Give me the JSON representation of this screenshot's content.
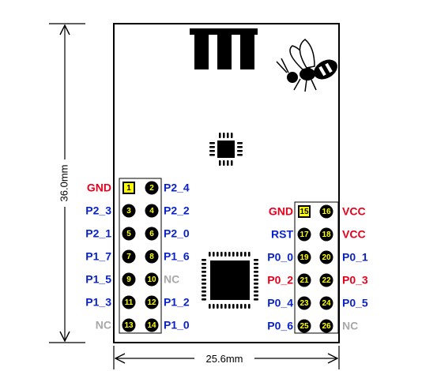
{
  "dimensions": {
    "height_label": "36.0mm",
    "width_label": "25.6mm"
  },
  "colors": {
    "power": "#e8001c",
    "signal": "#0a22cc",
    "nc": "#a8a8a8",
    "pin_marker": "#ffff00",
    "pin1_marker": "#ffff00",
    "outline": "#000000"
  },
  "left_header": {
    "rows": [
      {
        "left": {
          "num": "1",
          "label": "GND",
          "type": "power",
          "square": true
        },
        "right": {
          "num": "2",
          "label": "P2_4",
          "type": "signal"
        }
      },
      {
        "left": {
          "num": "3",
          "label": "P2_3",
          "type": "signal"
        },
        "right": {
          "num": "4",
          "label": "P2_2",
          "type": "signal"
        }
      },
      {
        "left": {
          "num": "5",
          "label": "P2_1",
          "type": "signal"
        },
        "right": {
          "num": "6",
          "label": "P2_0",
          "type": "signal"
        }
      },
      {
        "left": {
          "num": "7",
          "label": "P1_7",
          "type": "signal"
        },
        "right": {
          "num": "8",
          "label": "P1_6",
          "type": "signal"
        }
      },
      {
        "left": {
          "num": "9",
          "label": "P1_5",
          "type": "signal"
        },
        "right": {
          "num": "10",
          "label": "NC",
          "type": "nc"
        }
      },
      {
        "left": {
          "num": "11",
          "label": "P1_3",
          "type": "signal"
        },
        "right": {
          "num": "12",
          "label": "P1_2",
          "type": "signal"
        }
      },
      {
        "left": {
          "num": "13",
          "label": "NC",
          "type": "nc"
        },
        "right": {
          "num": "14",
          "label": "P1_0",
          "type": "signal"
        }
      }
    ]
  },
  "right_header": {
    "rows": [
      {
        "left": {
          "num": "15",
          "label": "GND",
          "type": "power",
          "square": true
        },
        "right": {
          "num": "16",
          "label": "VCC",
          "type": "power"
        }
      },
      {
        "left": {
          "num": "17",
          "label": "RST",
          "type": "signal"
        },
        "right": {
          "num": "18",
          "label": "VCC",
          "type": "power"
        }
      },
      {
        "left": {
          "num": "19",
          "label": "P0_0",
          "type": "signal"
        },
        "right": {
          "num": "20",
          "label": "P0_1",
          "type": "signal"
        }
      },
      {
        "left": {
          "num": "21",
          "label": "P0_2",
          "type": "power"
        },
        "right": {
          "num": "22",
          "label": "P0_3",
          "type": "power"
        }
      },
      {
        "left": {
          "num": "23",
          "label": "P0_4",
          "type": "signal"
        },
        "right": {
          "num": "24",
          "label": "P0_5",
          "type": "signal"
        }
      },
      {
        "left": {
          "num": "25",
          "label": "P0_6",
          "type": "signal"
        },
        "right": {
          "num": "26",
          "label": "NC",
          "type": "nc"
        }
      }
    ]
  },
  "icons": [
    "antenna-icon",
    "wasp-logo-icon",
    "small-chip-icon",
    "main-chip-icon"
  ]
}
